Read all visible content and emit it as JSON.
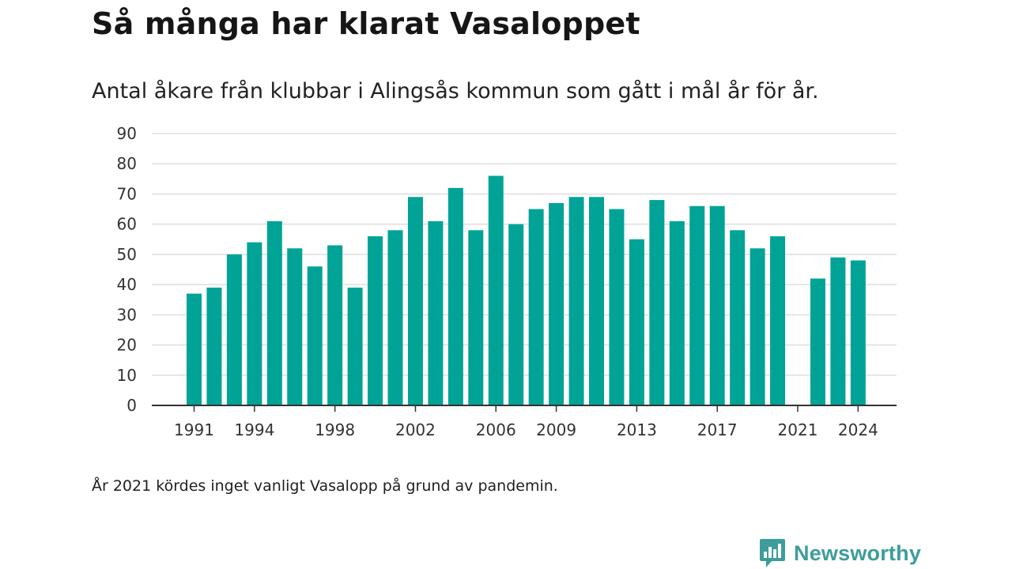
{
  "header": {
    "title": "Så många har klarat Vasaloppet",
    "subtitle": "Antal åkare från klubbar i Alingsås kommun som gått i mål år för år."
  },
  "footnote": "År 2021 kördes inget vanligt Vasalopp på grund av pandemin.",
  "brand": {
    "name": "Newsworthy",
    "icon": "newsworthy-logo-icon",
    "color": "#3d9d9b"
  },
  "chart_data": {
    "type": "bar",
    "bar_color": "#00a396",
    "categories": [
      "1991",
      "1992",
      "1993",
      "1994",
      "1995",
      "1996",
      "1997",
      "1998",
      "1999",
      "2000",
      "2001",
      "2002",
      "2003",
      "2004",
      "2005",
      "2006",
      "2007",
      "2008",
      "2009",
      "2010",
      "2011",
      "2012",
      "2013",
      "2014",
      "2015",
      "2016",
      "2017",
      "2018",
      "2019",
      "2020",
      "2021",
      "2022",
      "2023",
      "2024"
    ],
    "values": [
      37,
      39,
      50,
      54,
      61,
      52,
      46,
      53,
      39,
      56,
      58,
      69,
      61,
      72,
      58,
      76,
      60,
      65,
      67,
      69,
      69,
      65,
      55,
      68,
      61,
      66,
      66,
      58,
      52,
      56,
      null,
      42,
      49,
      48
    ],
    "x_tick_labels": [
      "1991",
      "1994",
      "1998",
      "2002",
      "2006",
      "2009",
      "2013",
      "2017",
      "2021",
      "2024"
    ],
    "y_ticks": [
      0,
      10,
      20,
      30,
      40,
      50,
      60,
      70,
      80,
      90
    ],
    "ylim": [
      0,
      90
    ],
    "grid": true,
    "title": "Så många har klarat Vasaloppet",
    "xlabel": "",
    "ylabel": ""
  }
}
